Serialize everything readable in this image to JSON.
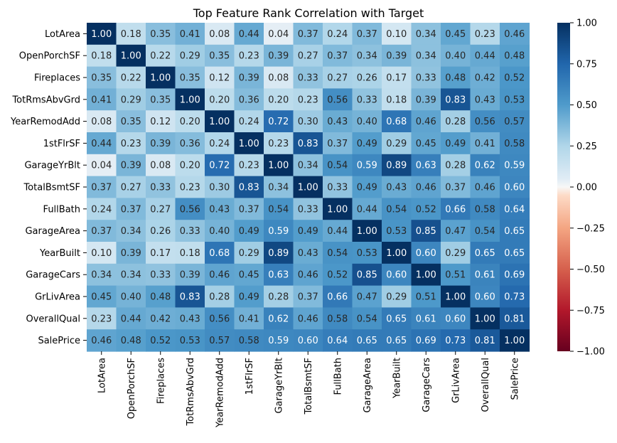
{
  "chart_data": {
    "type": "heatmap",
    "title": "Top Feature Rank Correlation with Target",
    "labels": [
      "LotArea",
      "OpenPorchSF",
      "Fireplaces",
      "TotRmsAbvGrd",
      "YearRemodAdd",
      "1stFlrSF",
      "GarageYrBlt",
      "TotalBsmtSF",
      "FullBath",
      "GarageArea",
      "YearBuilt",
      "GarageCars",
      "GrLivArea",
      "OverallQual",
      "SalePrice"
    ],
    "values": [
      [
        1.0,
        0.18,
        0.35,
        0.41,
        0.08,
        0.44,
        0.04,
        0.37,
        0.24,
        0.37,
        0.1,
        0.34,
        0.45,
        0.23,
        0.46
      ],
      [
        0.18,
        1.0,
        0.22,
        0.29,
        0.35,
        0.23,
        0.39,
        0.27,
        0.37,
        0.34,
        0.39,
        0.34,
        0.4,
        0.44,
        0.48
      ],
      [
        0.35,
        0.22,
        1.0,
        0.35,
        0.12,
        0.39,
        0.08,
        0.33,
        0.27,
        0.26,
        0.17,
        0.33,
        0.48,
        0.42,
        0.52
      ],
      [
        0.41,
        0.29,
        0.35,
        1.0,
        0.2,
        0.36,
        0.2,
        0.23,
        0.56,
        0.33,
        0.18,
        0.39,
        0.83,
        0.43,
        0.53
      ],
      [
        0.08,
        0.35,
        0.12,
        0.2,
        1.0,
        0.24,
        0.72,
        0.3,
        0.43,
        0.4,
        0.68,
        0.46,
        0.28,
        0.56,
        0.57
      ],
      [
        0.44,
        0.23,
        0.39,
        0.36,
        0.24,
        1.0,
        0.23,
        0.83,
        0.37,
        0.49,
        0.29,
        0.45,
        0.49,
        0.41,
        0.58
      ],
      [
        0.04,
        0.39,
        0.08,
        0.2,
        0.72,
        0.23,
        1.0,
        0.34,
        0.54,
        0.59,
        0.89,
        0.63,
        0.28,
        0.62,
        0.59
      ],
      [
        0.37,
        0.27,
        0.33,
        0.23,
        0.3,
        0.83,
        0.34,
        1.0,
        0.33,
        0.49,
        0.43,
        0.46,
        0.37,
        0.46,
        0.6
      ],
      [
        0.24,
        0.37,
        0.27,
        0.56,
        0.43,
        0.37,
        0.54,
        0.33,
        1.0,
        0.44,
        0.54,
        0.52,
        0.66,
        0.58,
        0.64
      ],
      [
        0.37,
        0.34,
        0.26,
        0.33,
        0.4,
        0.49,
        0.59,
        0.49,
        0.44,
        1.0,
        0.53,
        0.85,
        0.47,
        0.54,
        0.65
      ],
      [
        0.1,
        0.39,
        0.17,
        0.18,
        0.68,
        0.29,
        0.89,
        0.43,
        0.54,
        0.53,
        1.0,
        0.6,
        0.29,
        0.65,
        0.65
      ],
      [
        0.34,
        0.34,
        0.33,
        0.39,
        0.46,
        0.45,
        0.63,
        0.46,
        0.52,
        0.85,
        0.6,
        1.0,
        0.51,
        0.61,
        0.69
      ],
      [
        0.45,
        0.4,
        0.48,
        0.83,
        0.28,
        0.49,
        0.28,
        0.37,
        0.66,
        0.47,
        0.29,
        0.51,
        1.0,
        0.6,
        0.73
      ],
      [
        0.23,
        0.44,
        0.42,
        0.43,
        0.56,
        0.41,
        0.62,
        0.46,
        0.58,
        0.54,
        0.65,
        0.61,
        0.6,
        1.0,
        0.81
      ],
      [
        0.46,
        0.48,
        0.52,
        0.53,
        0.57,
        0.58,
        0.59,
        0.6,
        0.64,
        0.65,
        0.65,
        0.69,
        0.73,
        0.81,
        1.0
      ]
    ],
    "value_format": "0.00",
    "colorbar": {
      "range": [
        -1.0,
        1.0
      ],
      "ticks": [
        1.0,
        0.75,
        0.5,
        0.25,
        0.0,
        -0.25,
        -0.5,
        -0.75,
        -1.0
      ],
      "tick_labels": [
        "1.00",
        "0.75",
        "0.50",
        "0.25",
        "0.00",
        "−0.25",
        "−0.50",
        "−0.75",
        "−1.00"
      ],
      "colormap": "RdBu"
    },
    "xlabel": "",
    "ylabel": "",
    "legend": "colorbar-right",
    "grid": false
  }
}
